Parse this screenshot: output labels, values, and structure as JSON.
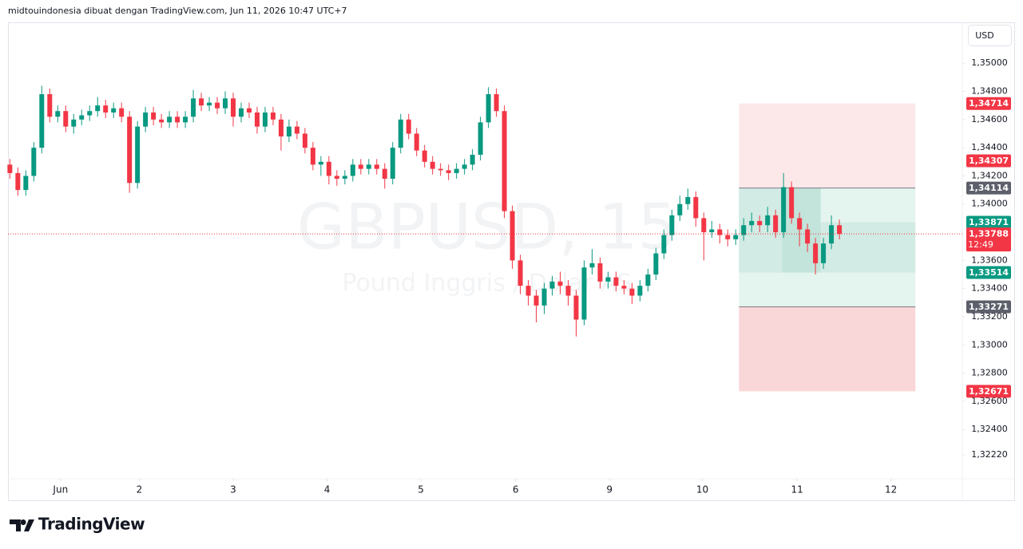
{
  "header": "midtouindonesia dibuat dengan TradingView.com, Jun 11, 2026 10:47 UTC+7",
  "footer": "TradingView",
  "chart_data": {
    "type": "candlestick",
    "symbol": "GBPUSD, 15",
    "description": "Pound Inggris / Dolar AS",
    "currency": "USD",
    "up_color": "#089981",
    "down_color": "#f23645",
    "grid": false,
    "x": [
      -0.54,
      -0.455,
      -0.37,
      -0.285,
      -0.2,
      -0.115,
      -0.03,
      0.055,
      0.14,
      0.225,
      0.31,
      0.395,
      0.48,
      0.565,
      0.65,
      0.735,
      0.82,
      0.905,
      0.99,
      1.075,
      1.16,
      1.245,
      1.33,
      1.415,
      1.5,
      1.585,
      1.67,
      1.755,
      1.84,
      1.925,
      2.01,
      2.095,
      2.18,
      2.265,
      2.35,
      2.435,
      2.52,
      2.605,
      2.69,
      2.775,
      2.86,
      2.945,
      3.03,
      3.115,
      3.2,
      3.285,
      3.37,
      3.455,
      3.54,
      3.625,
      3.71,
      3.795,
      3.88,
      3.965,
      4.05,
      4.135,
      4.22,
      4.305,
      4.39,
      4.475,
      4.56,
      4.645,
      4.73,
      4.815,
      4.9,
      4.985,
      5.07,
      5.155,
      5.24,
      5.325,
      5.41,
      5.495,
      5.58,
      5.665,
      5.75,
      5.835,
      5.92,
      6.005,
      6.09,
      6.175,
      6.26,
      6.345,
      6.43,
      6.515,
      6.6,
      6.685,
      6.77,
      6.855,
      6.94,
      7.025,
      7.11,
      7.195,
      7.28,
      7.365,
      7.45,
      7.535,
      7.62,
      7.705,
      7.79,
      7.875,
      7.96,
      8.045,
      8.13,
      8.215,
      8.3
    ],
    "open": [
      1.3428,
      1.3422,
      1.341,
      1.342,
      1.344,
      1.3478,
      1.3462,
      1.3466,
      1.3455,
      1.346,
      1.3463,
      1.3466,
      1.347,
      1.3465,
      1.3468,
      1.3462,
      1.3415,
      1.3455,
      1.3465,
      1.346,
      1.3458,
      1.3462,
      1.3458,
      1.3462,
      1.3475,
      1.347,
      1.3472,
      1.3468,
      1.3475,
      1.3462,
      1.3468,
      1.3465,
      1.3455,
      1.3465,
      1.346,
      1.3448,
      1.3455,
      1.345,
      1.344,
      1.3428,
      1.343,
      1.342,
      1.3418,
      1.342,
      1.3428,
      1.3425,
      1.3428,
      1.3425,
      1.3418,
      1.344,
      1.346,
      1.345,
      1.3438,
      1.343,
      1.3425,
      1.3424,
      1.3422,
      1.3425,
      1.3428,
      1.3435,
      1.3458,
      1.3478,
      1.3466,
      1.3395,
      1.336,
      1.3342,
      1.3335,
      1.3328,
      1.334,
      1.3345,
      1.3342,
      1.3335,
      1.3318,
      1.3355,
      1.3358,
      1.3345,
      1.3348,
      1.3342,
      1.334,
      1.3335,
      1.3342,
      1.335,
      1.3365,
      1.3378,
      1.3392,
      1.34,
      1.3405,
      1.339,
      1.338,
      1.3382,
      1.3378,
      1.3375,
      1.3378,
      1.3385,
      1.3388,
      1.3385,
      1.3392,
      1.338,
      1.3412,
      1.339,
      1.3382,
      1.3372,
      1.3358,
      1.3372,
      1.3385
    ],
    "high": [
      1.3432,
      1.3426,
      1.3424,
      1.3444,
      1.3484,
      1.3482,
      1.347,
      1.347,
      1.3464,
      1.3467,
      1.347,
      1.3476,
      1.3474,
      1.3472,
      1.3472,
      1.3466,
      1.3459,
      1.3469,
      1.3469,
      1.3464,
      1.3466,
      1.3466,
      1.3466,
      1.3481,
      1.3479,
      1.3476,
      1.3476,
      1.348,
      1.3479,
      1.3472,
      1.3472,
      1.3469,
      1.3469,
      1.3469,
      1.3464,
      1.346,
      1.3459,
      1.3454,
      1.3444,
      1.3434,
      1.3434,
      1.3424,
      1.3424,
      1.3432,
      1.3432,
      1.3432,
      1.3432,
      1.3429,
      1.3444,
      1.3464,
      1.3464,
      1.3454,
      1.3442,
      1.3434,
      1.3429,
      1.3428,
      1.3429,
      1.3432,
      1.3439,
      1.3462,
      1.3483,
      1.3482,
      1.347,
      1.3399,
      1.3364,
      1.3346,
      1.3339,
      1.3344,
      1.3349,
      1.3352,
      1.3346,
      1.3339,
      1.336,
      1.3368,
      1.3362,
      1.3352,
      1.3352,
      1.3346,
      1.3344,
      1.3346,
      1.3354,
      1.3369,
      1.3382,
      1.3396,
      1.3406,
      1.3411,
      1.3409,
      1.3394,
      1.3388,
      1.3386,
      1.3382,
      1.3382,
      1.339,
      1.3394,
      1.3392,
      1.3398,
      1.3396,
      1.3422,
      1.3416,
      1.3394,
      1.3386,
      1.3376,
      1.3376,
      1.3392,
      1.3389
    ],
    "low": [
      1.3418,
      1.3406,
      1.3406,
      1.3416,
      1.3436,
      1.3458,
      1.3458,
      1.3451,
      1.345,
      1.3456,
      1.3459,
      1.3462,
      1.3461,
      1.3461,
      1.3458,
      1.3408,
      1.3411,
      1.3451,
      1.3456,
      1.3454,
      1.3454,
      1.3454,
      1.3454,
      1.3458,
      1.3466,
      1.3466,
      1.3464,
      1.3464,
      1.3455,
      1.3458,
      1.3461,
      1.345,
      1.3451,
      1.3456,
      1.3438,
      1.3444,
      1.3446,
      1.3436,
      1.3424,
      1.342,
      1.3414,
      1.3413,
      1.3414,
      1.3416,
      1.3421,
      1.3421,
      1.3421,
      1.3411,
      1.3414,
      1.3436,
      1.3446,
      1.3434,
      1.3426,
      1.3421,
      1.342,
      1.3417,
      1.3418,
      1.3421,
      1.3424,
      1.3431,
      1.3454,
      1.3462,
      1.339,
      1.3354,
      1.3336,
      1.3328,
      1.3316,
      1.3322,
      1.3335,
      1.3336,
      1.3328,
      1.3306,
      1.3314,
      1.335,
      1.334,
      1.334,
      1.3338,
      1.3336,
      1.3329,
      1.3331,
      1.3338,
      1.3346,
      1.3361,
      1.3374,
      1.3388,
      1.3396,
      1.3384,
      1.336,
      1.3376,
      1.3372,
      1.337,
      1.3371,
      1.3374,
      1.338,
      1.338,
      1.338,
      1.3376,
      1.3376,
      1.3386,
      1.337,
      1.3366,
      1.335,
      1.3354,
      1.3368,
      1.3375
    ],
    "close": [
      1.3422,
      1.341,
      1.342,
      1.344,
      1.3478,
      1.3462,
      1.3466,
      1.3455,
      1.346,
      1.3463,
      1.3466,
      1.347,
      1.3465,
      1.3468,
      1.3462,
      1.3415,
      1.3455,
      1.3465,
      1.346,
      1.3458,
      1.3462,
      1.3458,
      1.3462,
      1.3475,
      1.347,
      1.3472,
      1.3468,
      1.3475,
      1.3462,
      1.3468,
      1.3465,
      1.3455,
      1.3465,
      1.346,
      1.3448,
      1.3455,
      1.345,
      1.344,
      1.3428,
      1.343,
      1.342,
      1.3418,
      1.342,
      1.3428,
      1.3425,
      1.3428,
      1.3425,
      1.3418,
      1.344,
      1.346,
      1.345,
      1.3438,
      1.343,
      1.3425,
      1.3424,
      1.3422,
      1.3425,
      1.3428,
      1.3435,
      1.3458,
      1.3478,
      1.3466,
      1.3395,
      1.336,
      1.3342,
      1.3335,
      1.3328,
      1.334,
      1.3345,
      1.3342,
      1.3335,
      1.3318,
      1.3355,
      1.3358,
      1.3345,
      1.3348,
      1.3342,
      1.334,
      1.3335,
      1.3342,
      1.335,
      1.3365,
      1.3378,
      1.3392,
      1.34,
      1.3405,
      1.339,
      1.338,
      1.3382,
      1.3378,
      1.3375,
      1.3378,
      1.3385,
      1.3388,
      1.3385,
      1.3392,
      1.338,
      1.3412,
      1.339,
      1.3382,
      1.3372,
      1.3358,
      1.3372,
      1.3385,
      1.33788
    ],
    "xlim": [
      -0.56,
      9.61
    ],
    "xticks": [
      {
        "value": 0,
        "label": "Jun"
      },
      {
        "value": 0.84,
        "label": "2"
      },
      {
        "value": 1.84,
        "label": "3"
      },
      {
        "value": 2.84,
        "label": "4"
      },
      {
        "value": 3.84,
        "label": "5"
      },
      {
        "value": 4.85,
        "label": "6"
      },
      {
        "value": 5.85,
        "label": "9"
      },
      {
        "value": 6.84,
        "label": "10"
      },
      {
        "value": 7.85,
        "label": "11"
      },
      {
        "value": 8.85,
        "label": "12"
      }
    ],
    "ylim": [
      1.3205,
      1.3529
    ],
    "yticks": [
      {
        "value": 1.35,
        "label": "1,35000"
      },
      {
        "value": 1.348,
        "label": "1,34800"
      },
      {
        "value": 1.346,
        "label": "1,34600"
      },
      {
        "value": 1.344,
        "label": "1,34400"
      },
      {
        "value": 1.342,
        "label": "1,34200"
      },
      {
        "value": 1.34,
        "label": "1,34000"
      },
      {
        "value": 1.336,
        "label": "1,33600"
      },
      {
        "value": 1.334,
        "label": "1,33400"
      },
      {
        "value": 1.332,
        "label": "1,33200"
      },
      {
        "value": 1.33,
        "label": "1,33000"
      },
      {
        "value": 1.328,
        "label": "1,32800"
      },
      {
        "value": 1.326,
        "label": "1,32600"
      },
      {
        "value": 1.324,
        "label": "1,32400"
      },
      {
        "value": 1.3222,
        "label": "1,32220"
      }
    ],
    "zones": [
      {
        "from": 1.34714,
        "to": 1.34114,
        "x0": 7.23,
        "x1": 9.11,
        "color": "#fde8e9"
      },
      {
        "from": 1.34114,
        "to": 1.33271,
        "x0": 7.23,
        "x1": 9.11,
        "color": "#e4f4ef"
      },
      {
        "from": 1.33271,
        "to": 1.32671,
        "x0": 7.23,
        "x1": 9.11,
        "color": "#f9d6d8"
      },
      {
        "from": 1.34114,
        "to": 1.33514,
        "x0": 7.23,
        "x1": 8.1,
        "color": "#d2ebe4"
      },
      {
        "from": 1.33871,
        "to": 1.33514,
        "x0": 8.1,
        "x1": 9.11,
        "color": "#d2ebe4"
      },
      {
        "from": 1.34114,
        "to": 1.33514,
        "x0": 7.69,
        "x1": 8.1,
        "color": "#c2e4da"
      }
    ],
    "price_labels": [
      {
        "value": 1.34714,
        "label": "1,34714",
        "color": "#f23645"
      },
      {
        "value": 1.34307,
        "label": "1,34307",
        "color": "#f23645"
      },
      {
        "value": 1.34114,
        "label": "1,34114",
        "color": "#5d606b"
      },
      {
        "value": 1.33871,
        "label": "1,33871",
        "color": "#089981"
      },
      {
        "value": 1.33514,
        "label": "1,33514",
        "color": "#089981"
      },
      {
        "value": 1.33271,
        "label": "1,33271",
        "color": "#5d606b"
      },
      {
        "value": 1.32671,
        "label": "1,32671",
        "color": "#f23645"
      }
    ],
    "last_price": {
      "value": 1.33788,
      "label": "1,33788",
      "countdown": "12:49",
      "color": "#f23645"
    }
  }
}
